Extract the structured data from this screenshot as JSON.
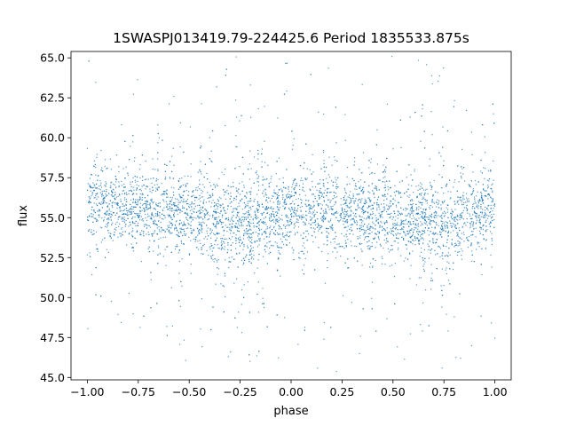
{
  "chart_data": {
    "type": "scatter",
    "title": "1SWASPJ013419.79-224425.6 Period 1835533.875s",
    "xlabel": "phase",
    "ylabel": "flux",
    "xlim": [
      -1.08,
      1.08
    ],
    "ylim": [
      44.85,
      65.4
    ],
    "x_ticks": [
      -1.0,
      -0.75,
      -0.5,
      -0.25,
      0.0,
      0.25,
      0.5,
      0.75,
      1.0
    ],
    "x_tick_labels": [
      "−1.00",
      "−0.75",
      "−0.50",
      "−0.25",
      "0.00",
      "0.25",
      "0.50",
      "0.75",
      "1.00"
    ],
    "y_ticks": [
      45.0,
      47.5,
      50.0,
      52.5,
      55.0,
      57.5,
      60.0,
      62.5,
      65.0
    ],
    "y_tick_labels": [
      "45.0",
      "47.5",
      "50.0",
      "52.5",
      "55.0",
      "57.5",
      "60.0",
      "62.5",
      "65.0"
    ],
    "grid": false,
    "legend": "none",
    "series": [
      {
        "color": "#1f77b4",
        "marker": "point",
        "note_values": "dense phase-folded light curve; flux clusters around 55 with band ~52.5–58, scattered outliers 45–65",
        "phase_range": [
          -1.0,
          1.0
        ],
        "center_profile": {
          "phase": [
            -1.0,
            -0.75,
            -0.5,
            -0.25,
            0.0,
            0.25,
            0.5,
            0.75,
            1.0
          ],
          "flux": [
            55.8,
            55.6,
            55.1,
            54.6,
            55.5,
            55.4,
            55.0,
            54.6,
            55.6
          ]
        }
      }
    ]
  }
}
